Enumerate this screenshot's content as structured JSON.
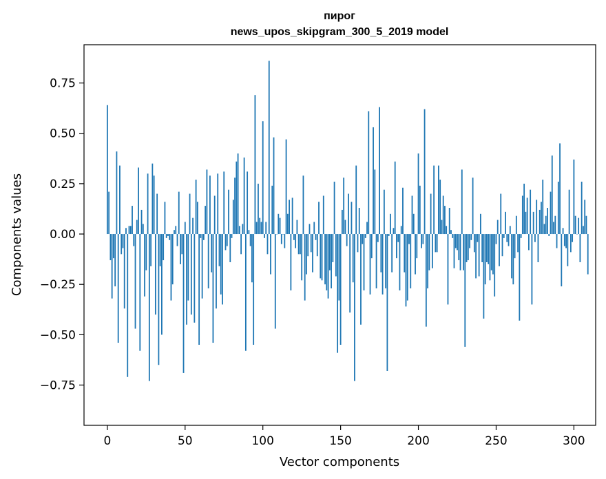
{
  "chart_data": {
    "type": "bar",
    "title": "пирог",
    "subtitle": "news_upos_skipgram_300_5_2019 model",
    "xlabel": "Vector components",
    "ylabel": "Components values",
    "xlim": [
      -15,
      314
    ],
    "ylim": [
      -0.95,
      0.94
    ],
    "xticks": [
      0,
      50,
      100,
      150,
      200,
      250,
      300
    ],
    "yticks": [
      -0.75,
      -0.5,
      -0.25,
      0.0,
      0.25,
      0.5,
      0.75
    ],
    "ytick_labels": [
      "−0.75",
      "−0.50",
      "−0.25",
      "0.00",
      "0.25",
      "0.50",
      "0.75"
    ],
    "bar_color": "#1f77b4",
    "grid": false,
    "values": [
      0.64,
      0.21,
      -0.13,
      -0.32,
      -0.12,
      -0.26,
      0.41,
      -0.54,
      0.34,
      -0.1,
      -0.07,
      -0.37,
      0.03,
      -0.71,
      0.04,
      0.04,
      0.14,
      -0.06,
      -0.47,
      0.07,
      0.33,
      -0.58,
      0.12,
      0.05,
      -0.31,
      -0.18,
      0.3,
      -0.73,
      -0.16,
      0.35,
      0.29,
      -0.4,
      0.2,
      -0.65,
      -0.16,
      -0.5,
      -0.13,
      0.16,
      -0.02,
      -0.01,
      -0.03,
      -0.33,
      -0.25,
      0.02,
      0.04,
      -0.06,
      0.21,
      -0.15,
      -0.1,
      -0.69,
      0.06,
      -0.45,
      -0.33,
      0.2,
      -0.4,
      0.08,
      -0.44,
      0.27,
      0.16,
      -0.55,
      -0.02,
      -0.32,
      -0.03,
      0.14,
      0.32,
      -0.27,
      0.29,
      -0.19,
      -0.54,
      0.19,
      -0.37,
      0.3,
      -0.16,
      -0.3,
      -0.35,
      0.31,
      -0.08,
      -0.06,
      0.22,
      -0.14,
      -0.02,
      0.17,
      0.28,
      0.36,
      0.4,
      0.04,
      -0.1,
      0.05,
      0.38,
      -0.58,
      0.31,
      0.02,
      -0.06,
      -0.24,
      -0.55,
      0.69,
      0.06,
      0.25,
      0.08,
      0.06,
      0.56,
      -0.02,
      0.06,
      -0.1,
      0.86,
      -0.2,
      0.24,
      0.48,
      -0.47,
      0.0,
      0.1,
      0.08,
      -0.05,
      0.0,
      -0.07,
      0.47,
      0.1,
      0.17,
      -0.28,
      0.18,
      -0.03,
      -0.07,
      0.07,
      -0.1,
      -0.1,
      -0.23,
      0.29,
      -0.33,
      -0.2,
      -0.11,
      0.05,
      -0.09,
      -0.19,
      0.06,
      -0.03,
      -0.11,
      0.16,
      -0.22,
      -0.23,
      0.19,
      -0.25,
      -0.28,
      -0.32,
      -0.18,
      -0.27,
      -0.14,
      0.26,
      -0.21,
      -0.59,
      -0.33,
      -0.55,
      0.12,
      0.28,
      0.07,
      -0.06,
      0.2,
      -0.39,
      0.16,
      -0.24,
      -0.73,
      0.34,
      -0.09,
      0.13,
      -0.45,
      -0.05,
      -0.28,
      -0.02,
      0.06,
      0.61,
      -0.3,
      -0.12,
      0.53,
      0.32,
      -0.27,
      -0.04,
      0.63,
      -0.19,
      -0.3,
      0.22,
      -0.27,
      -0.68,
      -0.01,
      0.1,
      -0.19,
      0.03,
      0.36,
      -0.12,
      -0.04,
      -0.28,
      0.04,
      0.23,
      -0.19,
      -0.36,
      -0.33,
      -0.05,
      -0.27,
      0.19,
      0.1,
      -0.2,
      -0.12,
      0.4,
      0.24,
      -0.07,
      -0.05,
      0.62,
      -0.46,
      -0.27,
      -0.18,
      0.2,
      -0.17,
      0.34,
      -0.09,
      -0.09,
      0.34,
      0.27,
      0.07,
      0.19,
      0.14,
      0.04,
      -0.35,
      0.13,
      0.02,
      -0.02,
      -0.17,
      -0.07,
      -0.08,
      -0.13,
      -0.18,
      0.32,
      -0.18,
      -0.56,
      -0.14,
      -0.13,
      -0.07,
      -0.03,
      0.28,
      -0.09,
      -0.22,
      -0.04,
      -0.21,
      0.1,
      -0.14,
      -0.42,
      -0.25,
      -0.14,
      -0.15,
      -0.23,
      -0.18,
      -0.2,
      -0.31,
      -0.05,
      0.07,
      -0.16,
      0.2,
      -0.11,
      -0.02,
      0.11,
      -0.04,
      -0.06,
      0.04,
      -0.22,
      -0.25,
      -0.12,
      0.09,
      -0.09,
      -0.43,
      -0.02,
      0.19,
      0.25,
      0.11,
      0.18,
      -0.08,
      0.22,
      -0.35,
      0.11,
      -0.04,
      0.17,
      -0.14,
      0.12,
      0.16,
      0.27,
      0.05,
      0.09,
      0.13,
      -0.01,
      0.21,
      0.39,
      0.06,
      0.09,
      -0.07,
      0.26,
      0.45,
      -0.26,
      0.03,
      -0.06,
      -0.07,
      -0.16,
      0.22,
      -0.09,
      -0.04,
      0.37,
      0.09,
      0.0,
      0.08,
      -0.14,
      0.26,
      0.04,
      0.17,
      0.09,
      -0.2
    ]
  }
}
